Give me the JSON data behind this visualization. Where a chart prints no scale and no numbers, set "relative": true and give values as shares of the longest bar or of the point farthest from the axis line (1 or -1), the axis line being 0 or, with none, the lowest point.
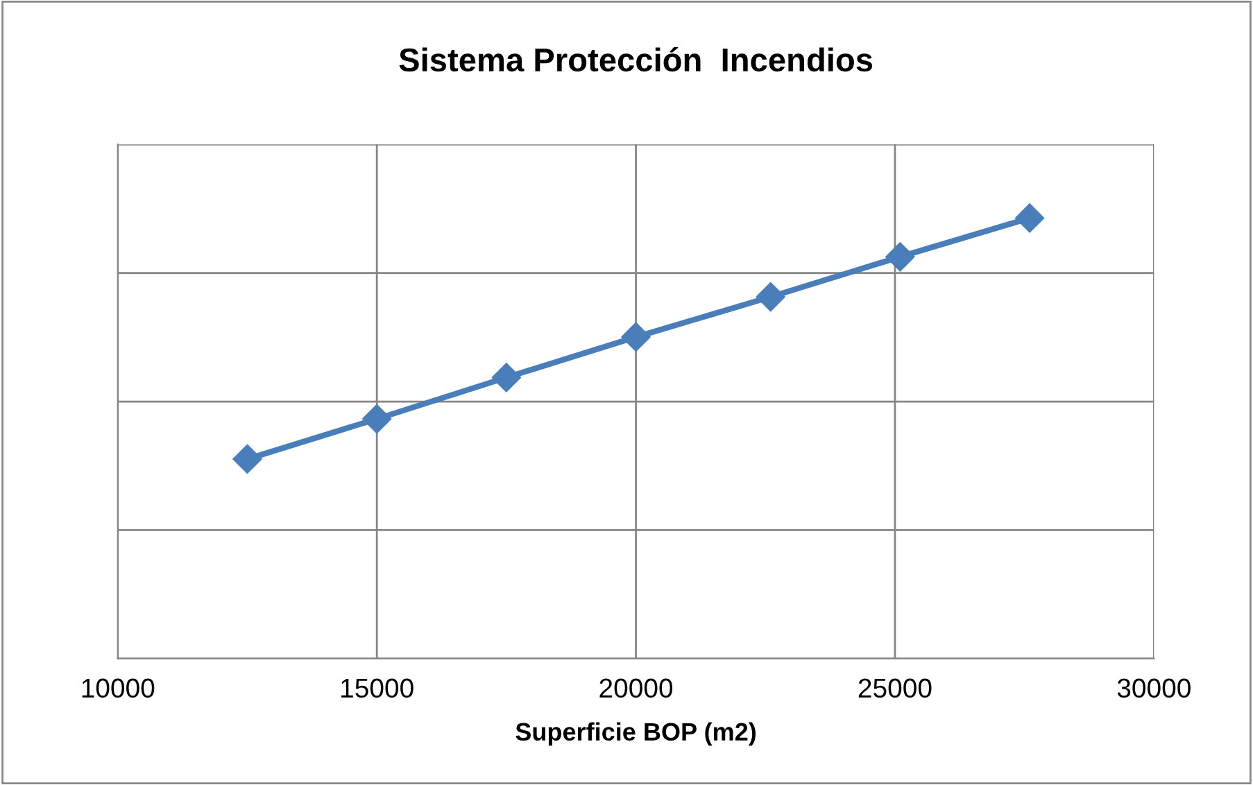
{
  "chart_data": {
    "type": "line",
    "title": "Sistema Protección  Incendios",
    "xlabel": "Superficie BOP (m2)",
    "x": [
      12500,
      15000,
      17500,
      20000,
      22600,
      25100,
      27600
    ],
    "series": [
      {
        "color": "#4a7ebb",
        "values": [
          0.453,
          0.544,
          0.638,
          0.73,
          0.821,
          0.912,
          1
        ]
      }
    ],
    "relative": true,
    "xlim": [
      10000,
      30000
    ],
    "xticks": [
      10000,
      15000,
      20000,
      25000,
      30000
    ],
    "grid": true,
    "marker": "diamond",
    "line_style": "solid",
    "tick_labels": "x"
  }
}
